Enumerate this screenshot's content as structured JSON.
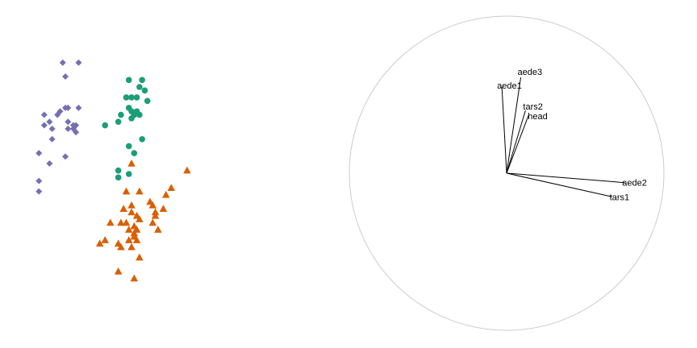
{
  "chart_data": [
    {
      "type": "scatter",
      "title": "",
      "xlabel": "",
      "ylabel": "",
      "grid": false,
      "legend": "none",
      "xlim": [
        0,
        100
      ],
      "ylim": [
        0,
        100
      ],
      "series": [
        {
          "marker": "diamond",
          "color": "#7570b3",
          "points": [
            [
              17,
              82
            ],
            [
              23,
              82
            ],
            [
              18,
              78
            ],
            [
              10,
              67
            ],
            [
              15,
              67
            ],
            [
              16,
              68
            ],
            [
              18,
              69
            ],
            [
              19,
              69
            ],
            [
              23,
              69
            ],
            [
              10,
              64
            ],
            [
              12,
              65
            ],
            [
              13,
              63
            ],
            [
              19,
              65
            ],
            [
              21,
              64
            ],
            [
              21,
              63
            ],
            [
              22,
              64
            ],
            [
              19,
              63
            ],
            [
              22,
              62
            ],
            [
              13,
              60
            ],
            [
              8,
              56
            ],
            [
              18,
              55
            ],
            [
              12,
              53
            ],
            [
              8,
              48
            ],
            [
              8,
              45
            ]
          ]
        },
        {
          "marker": "circle",
          "color": "#1b9e77",
          "points": [
            [
              42,
              77
            ],
            [
              47,
              77
            ],
            [
              46,
              75
            ],
            [
              48,
              74
            ],
            [
              41,
              72
            ],
            [
              43,
              72
            ],
            [
              45,
              72
            ],
            [
              49,
              71
            ],
            [
              42,
              69
            ],
            [
              43,
              68
            ],
            [
              45,
              68
            ],
            [
              39,
              67
            ],
            [
              44,
              67
            ],
            [
              46,
              67
            ],
            [
              43,
              66
            ],
            [
              38,
              65
            ],
            [
              33,
              64
            ],
            [
              47,
              60
            ],
            [
              42,
              58
            ],
            [
              44,
              56
            ],
            [
              42,
              50
            ],
            [
              38,
              51
            ],
            [
              38,
              49
            ]
          ]
        },
        {
          "marker": "triangle",
          "color": "#d95f02",
          "points": [
            [
              43,
              53
            ],
            [
              64,
              51
            ],
            [
              58,
              46
            ],
            [
              41,
              45
            ],
            [
              46,
              45
            ],
            [
              56,
              44
            ],
            [
              50,
              42
            ],
            [
              43,
              41
            ],
            [
              51,
              41
            ],
            [
              55,
              40
            ],
            [
              40,
              40
            ],
            [
              52,
              39
            ],
            [
              43,
              39
            ],
            [
              45,
              38
            ],
            [
              52,
              38
            ],
            [
              46,
              37
            ],
            [
              35,
              36
            ],
            [
              39,
              36
            ],
            [
              41,
              36
            ],
            [
              44,
              35
            ],
            [
              51,
              36
            ],
            [
              53,
              34
            ],
            [
              42,
              34
            ],
            [
              44,
              33
            ],
            [
              45,
              34
            ],
            [
              44,
              32
            ],
            [
              45,
              31
            ],
            [
              33,
              31
            ],
            [
              42,
              31
            ],
            [
              38,
              30
            ],
            [
              39,
              29
            ],
            [
              43,
              29
            ],
            [
              31,
              30
            ],
            [
              46,
              26
            ],
            [
              38,
              22
            ],
            [
              44,
              20
            ]
          ]
        }
      ]
    },
    {
      "type": "line",
      "title": "",
      "xlabel": "",
      "ylabel": "",
      "grid": false,
      "legend": "none",
      "xlim": [
        -1,
        1
      ],
      "ylim": [
        -1,
        1
      ],
      "circle_color": "#cccccc",
      "series": [
        {
          "name": "aede1",
          "x": [
            0,
            -0.03
          ],
          "y": [
            0,
            0.55
          ]
        },
        {
          "name": "aede3",
          "x": [
            0,
            0.09
          ],
          "y": [
            0,
            0.61
          ]
        },
        {
          "name": "tars2",
          "x": [
            0,
            0.12
          ],
          "y": [
            0,
            0.4
          ]
        },
        {
          "name": "head",
          "x": [
            0,
            0.14
          ],
          "y": [
            0,
            0.37
          ]
        },
        {
          "name": "aede2",
          "x": [
            0,
            0.75
          ],
          "y": [
            0,
            -0.06
          ]
        },
        {
          "name": "tars1",
          "x": [
            0,
            0.67
          ],
          "y": [
            0,
            -0.15
          ]
        }
      ]
    }
  ]
}
